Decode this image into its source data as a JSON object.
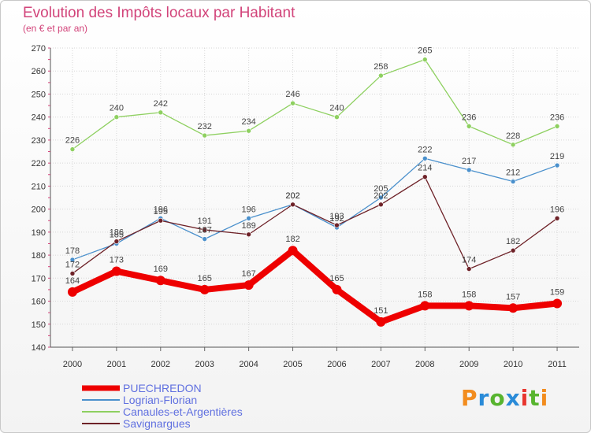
{
  "header": {
    "title": "Evolution des Impôts locaux par Habitant",
    "subtitle": "(en € et par an)"
  },
  "logo": {
    "text": "Proxiti",
    "colors": [
      "#f28c1e",
      "#2a8bd8",
      "#58b42f",
      "#2a8bd8",
      "#e8352e",
      "#58b42f",
      "#f28c1e"
    ]
  },
  "chart_data": {
    "type": "line",
    "title": "Evolution des Impôts locaux par Habitant",
    "subtitle": "(en € et par an)",
    "xlabel": "",
    "ylabel": "",
    "x": [
      "2000",
      "2001",
      "2002",
      "2003",
      "2004",
      "2005",
      "2006",
      "2007",
      "2008",
      "2009",
      "2010",
      "2011"
    ],
    "ylim": [
      140,
      270
    ],
    "yticks": [
      "140",
      "150",
      "160",
      "170",
      "180",
      "190",
      "200",
      "210",
      "220",
      "230",
      "240",
      "250",
      "260",
      "270"
    ],
    "grid": true,
    "legend_position": "bottom-left",
    "series": [
      {
        "name": "PUECHREDON",
        "color": "#ee0000",
        "values": [
          164,
          173,
          169,
          165,
          167,
          182,
          165,
          151,
          158,
          158,
          157,
          159
        ]
      },
      {
        "name": "Logrian-Florian",
        "color": "#4a90cc",
        "values": [
          178,
          185,
          196,
          187,
          196,
          202,
          192,
          205,
          222,
          217,
          212,
          219
        ]
      },
      {
        "name": "Canaules-et-Argentières",
        "color": "#8ed060",
        "values": [
          226,
          240,
          242,
          232,
          234,
          246,
          240,
          258,
          265,
          236,
          228,
          236
        ]
      },
      {
        "name": "Savignargues",
        "color": "#6e2228",
        "values": [
          172,
          186,
          195,
          191,
          189,
          202,
          193,
          202,
          214,
          174,
          182,
          196
        ]
      }
    ]
  }
}
